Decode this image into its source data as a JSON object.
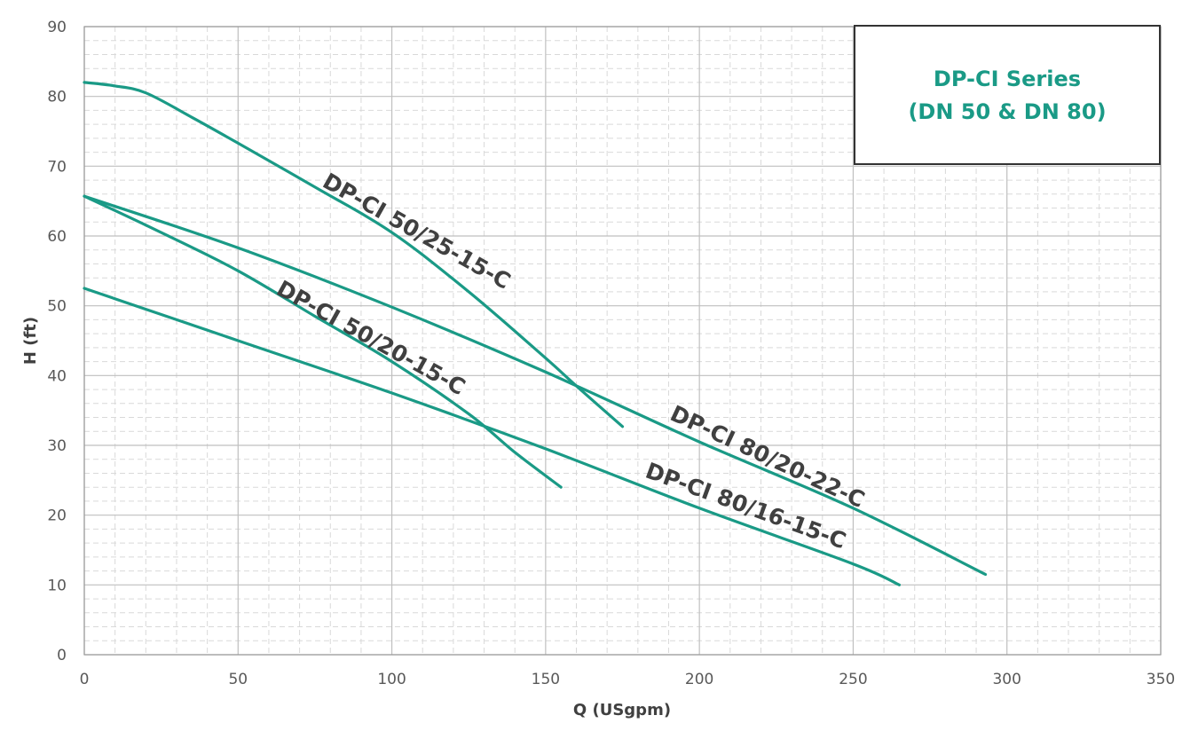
{
  "chart_data": {
    "type": "line",
    "xlabel": "Q (USgpm)",
    "ylabel": "H (ft)",
    "xlim": [
      0,
      350
    ],
    "ylim": [
      0,
      90
    ],
    "x_major_ticks": [
      0,
      50,
      100,
      150,
      200,
      250,
      300,
      350
    ],
    "y_major_ticks": [
      0,
      10,
      20,
      30,
      40,
      50,
      60,
      70,
      80,
      90
    ],
    "x_minor_step": 10,
    "y_minor_step": 2,
    "grid": true,
    "box_title": [
      "DP-CI Series",
      "(DN 50 & DN 80)"
    ],
    "box_placement": "top-right",
    "colors": {
      "curve": "#1a9a86",
      "box_text": "#1a9a86"
    },
    "series": [
      {
        "name": "DP-CI 50/25-15-C",
        "points": [
          [
            0,
            82
          ],
          [
            10,
            81.5
          ],
          [
            20,
            80.5
          ],
          [
            35,
            77
          ],
          [
            50,
            73.3
          ],
          [
            75,
            67
          ],
          [
            100,
            60.5
          ],
          [
            125,
            52
          ],
          [
            150,
            42.5
          ],
          [
            160,
            38.5
          ],
          [
            175,
            32.7
          ]
        ]
      },
      {
        "name": "DP-CI 80/20-22-C",
        "points": [
          [
            0,
            65.7
          ],
          [
            50,
            58.3
          ],
          [
            100,
            49.8
          ],
          [
            150,
            40.5
          ],
          [
            200,
            30.5
          ],
          [
            250,
            21
          ],
          [
            293,
            11.5
          ]
        ]
      },
      {
        "name": "DP-CI 50/20-15-C",
        "points": [
          [
            0,
            65.7
          ],
          [
            25,
            60.5
          ],
          [
            50,
            55
          ],
          [
            75,
            48.5
          ],
          [
            100,
            42
          ],
          [
            125,
            34.5
          ],
          [
            140,
            29
          ],
          [
            155,
            24
          ]
        ]
      },
      {
        "name": "DP-CI 80/16-15-C",
        "points": [
          [
            0,
            52.5
          ],
          [
            50,
            45
          ],
          [
            100,
            37.5
          ],
          [
            150,
            29.5
          ],
          [
            200,
            21
          ],
          [
            250,
            13
          ],
          [
            265,
            10
          ]
        ]
      }
    ],
    "curve_labels": [
      {
        "text": "DP-CI 50/25-15-C",
        "at": [
          77,
          67.2
        ],
        "angle_deg": 29.5
      },
      {
        "text": "DP-CI 50/20-15-C",
        "at": [
          62,
          51.8
        ],
        "angle_deg": 29
      },
      {
        "text": "DP-CI 80/20-22-C",
        "at": [
          190,
          33.8
        ],
        "angle_deg": 25
      },
      {
        "text": "DP-CI 80/16-15-C",
        "at": [
          182,
          25.5
        ],
        "angle_deg": 20
      }
    ]
  }
}
